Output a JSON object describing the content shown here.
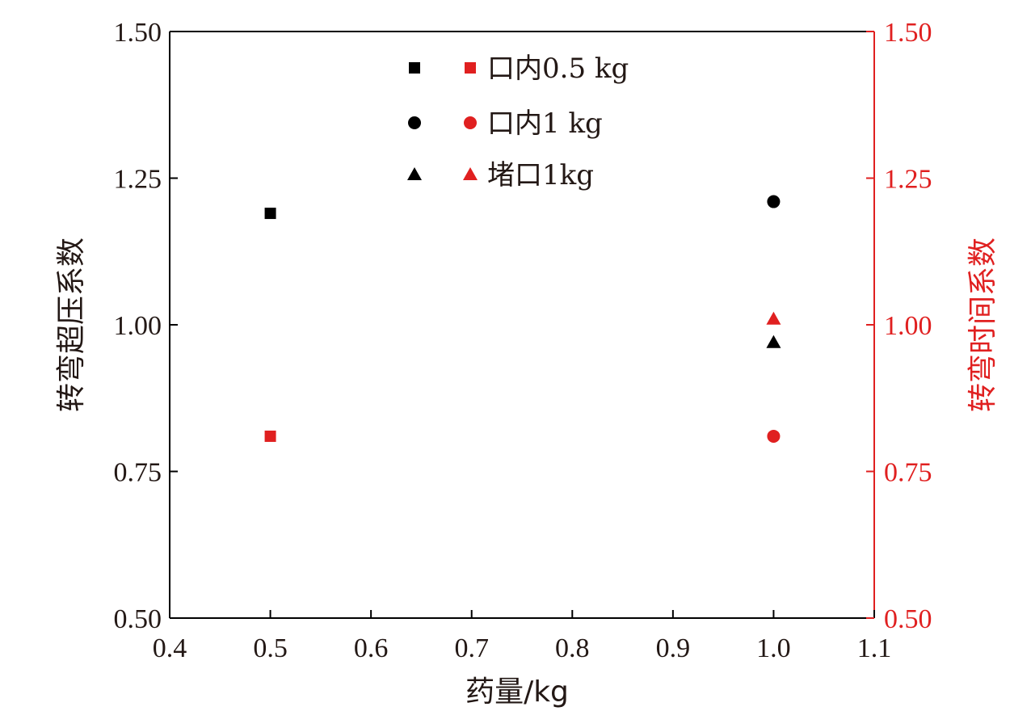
{
  "chart_data": {
    "type": "scatter",
    "xlabel": "药量/kg",
    "ylabel_left": "转弯超压系数",
    "ylabel_right": "转弯时间系数",
    "xlim": [
      0.4,
      1.1
    ],
    "ylim_left": [
      0.5,
      1.5
    ],
    "ylim_right": [
      0.5,
      1.5
    ],
    "x_ticks": [
      "0.4",
      "0.5",
      "0.6",
      "0.7",
      "0.8",
      "0.9",
      "1.0",
      "1.1"
    ],
    "y_ticks_left": [
      "0.50",
      "0.75",
      "1.00",
      "1.25",
      "1.50"
    ],
    "y_ticks_right": [
      "0.50",
      "0.75",
      "1.00",
      "1.25",
      "1.50"
    ],
    "grid": false,
    "legend_position": "top-center",
    "colors": {
      "left_axis": "#000000",
      "right_axis": "#e02020"
    },
    "legend": [
      {
        "label": "口内0.5 kg",
        "marker": "square"
      },
      {
        "label": "口内1 kg",
        "marker": "circle"
      },
      {
        "label": "堵口1kg",
        "marker": "triangle"
      }
    ],
    "series": [
      {
        "axis": "left",
        "marker": "square",
        "points": [
          {
            "x": 0.5,
            "y": 1.19
          }
        ]
      },
      {
        "axis": "left",
        "marker": "circle",
        "points": [
          {
            "x": 1.0,
            "y": 1.21
          }
        ]
      },
      {
        "axis": "left",
        "marker": "triangle",
        "points": [
          {
            "x": 1.0,
            "y": 0.97
          }
        ]
      },
      {
        "axis": "right",
        "marker": "square",
        "points": [
          {
            "x": 0.5,
            "y": 0.81
          }
        ]
      },
      {
        "axis": "right",
        "marker": "circle",
        "points": [
          {
            "x": 1.0,
            "y": 0.81
          }
        ]
      },
      {
        "axis": "right",
        "marker": "triangle",
        "points": [
          {
            "x": 1.0,
            "y": 1.01
          }
        ]
      }
    ]
  }
}
